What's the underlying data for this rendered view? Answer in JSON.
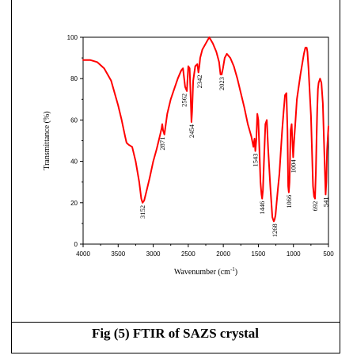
{
  "chart_data": {
    "type": "line",
    "title": "",
    "xlabel": "Wavenumber (cm",
    "xlabel_sup": "-1",
    "xlabel_end": ")",
    "ylabel": "Transmittance (%)",
    "xlim": [
      4000,
      500
    ],
    "ylim": [
      0,
      100
    ],
    "x_ticks": [
      4000,
      3500,
      3000,
      2500,
      2000,
      1500,
      1000,
      500
    ],
    "x_tick_labels": [
      "4000",
      "3500",
      "3000",
      "2500",
      "2000",
      "1500",
      "1000",
      "500"
    ],
    "y_ticks": [
      0,
      20,
      40,
      60,
      80,
      100
    ],
    "y_tick_labels": [
      "0",
      "20",
      "40",
      "60",
      "80",
      "100"
    ],
    "grid": false,
    "line_color": "#ff0000",
    "series": [
      {
        "x": [
          4000,
          3900,
          3800,
          3700,
          3600,
          3500,
          3450,
          3400,
          3380,
          3350,
          3300,
          3250,
          3200,
          3170,
          3152,
          3130,
          3100,
          3050,
          3000,
          2950,
          2900,
          2880,
          2871,
          2860,
          2840,
          2800,
          2750,
          2700,
          2650,
          2600,
          2575,
          2562,
          2545,
          2520,
          2500,
          2480,
          2465,
          2454,
          2445,
          2430,
          2400,
          2370,
          2355,
          2342,
          2330,
          2300,
          2250,
          2200,
          2150,
          2100,
          2060,
          2040,
          2023,
          2005,
          1980,
          1950,
          1900,
          1850,
          1800,
          1750,
          1700,
          1650,
          1600,
          1570,
          1555,
          1543,
          1530,
          1515,
          1500,
          1485,
          1470,
          1455,
          1446,
          1435,
          1420,
          1400,
          1380,
          1360,
          1330,
          1300,
          1280,
          1268,
          1255,
          1240,
          1220,
          1200,
          1180,
          1160,
          1140,
          1120,
          1100,
          1085,
          1075,
          1066,
          1055,
          1040,
          1025,
          1015,
          1004,
          990,
          970,
          950,
          900,
          860,
          850,
          830,
          810,
          800,
          785,
          770,
          750,
          735,
          720,
          705,
          692,
          680,
          670,
          660,
          650,
          640,
          620,
          600,
          580,
          560,
          541,
          530,
          520,
          500
        ],
        "y": [
          89,
          89,
          88,
          85,
          79,
          67,
          60,
          52,
          49,
          48,
          47,
          40,
          30,
          22,
          20,
          21,
          25,
          32,
          40,
          46,
          53,
          56,
          58,
          55,
          53,
          63,
          70,
          75,
          80,
          84,
          85,
          81,
          76,
          74,
          86,
          85,
          70,
          59,
          64,
          79,
          86,
          87,
          83,
          86,
          90,
          94,
          97,
          100,
          97,
          93,
          88,
          82,
          82,
          85,
          90,
          92,
          90,
          86,
          80,
          73,
          66,
          58,
          52,
          47,
          51,
          45,
          50,
          63,
          60,
          45,
          30,
          24,
          22,
          26,
          40,
          58,
          60,
          46,
          28,
          13,
          11,
          12,
          14,
          20,
          27,
          34,
          45,
          55,
          64,
          72,
          73,
          55,
          28,
          25,
          30,
          55,
          58,
          50,
          42,
          50,
          60,
          70,
          82,
          90,
          92,
          95,
          95,
          93,
          85,
          75,
          62,
          45,
          28,
          23,
          22,
          35,
          50,
          65,
          75,
          78,
          80,
          78,
          68,
          45,
          24,
          30,
          45,
          57
        ]
      }
    ],
    "peak_labels": [
      {
        "x": 3152,
        "y": 20,
        "text": "3152"
      },
      {
        "x": 2871,
        "y": 53,
        "text": "2871"
      },
      {
        "x": 2562,
        "y": 74,
        "text": "2562"
      },
      {
        "x": 2454,
        "y": 59,
        "text": "2454"
      },
      {
        "x": 2342,
        "y": 83,
        "text": "2342"
      },
      {
        "x": 2023,
        "y": 82,
        "text": "2023"
      },
      {
        "x": 1543,
        "y": 45,
        "text": "1543"
      },
      {
        "x": 1446,
        "y": 22,
        "text": "1446"
      },
      {
        "x": 1268,
        "y": 11,
        "text": "1268"
      },
      {
        "x": 1066,
        "y": 25,
        "text": "1066"
      },
      {
        "x": 1004,
        "y": 42,
        "text": "1004"
      },
      {
        "x": 692,
        "y": 22,
        "text": "692"
      },
      {
        "x": 541,
        "y": 24,
        "text": "541"
      }
    ]
  },
  "caption": "Fig (5) FTIR of SAZS crystal"
}
